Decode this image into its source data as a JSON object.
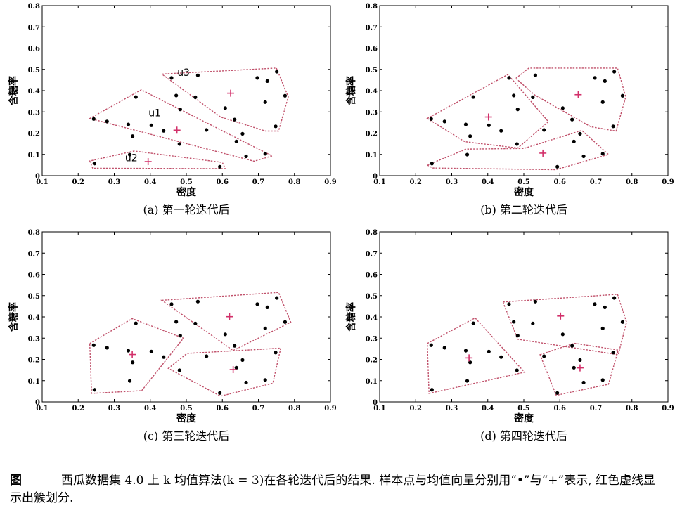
{
  "chart_data": [
    {
      "type": "scatter",
      "subcaption": "(a) 第一轮迭代后",
      "xlabel": "密度",
      "ylabel": "含糖率",
      "xlim": [
        0.1,
        0.9
      ],
      "ylim": [
        0,
        0.8
      ],
      "xticks": [
        "0.1",
        "0.2",
        "0.3",
        "0.4",
        "0.5",
        "0.6",
        "0.7",
        "0.8",
        "0.9"
      ],
      "yticks": [
        "0",
        "0.1",
        "0.2",
        "0.3",
        "0.4",
        "0.5",
        "0.6",
        "0.7",
        "0.8"
      ],
      "points": [
        [
          0.243,
          0.267
        ],
        [
          0.245,
          0.057
        ],
        [
          0.28,
          0.255
        ],
        [
          0.339,
          0.241
        ],
        [
          0.343,
          0.099
        ],
        [
          0.351,
          0.186
        ],
        [
          0.36,
          0.37
        ],
        [
          0.403,
          0.237
        ],
        [
          0.437,
          0.211
        ],
        [
          0.459,
          0.46
        ],
        [
          0.481,
          0.149
        ],
        [
          0.483,
          0.312
        ],
        [
          0.525,
          0.369
        ],
        [
          0.532,
          0.472
        ],
        [
          0.556,
          0.215
        ],
        [
          0.593,
          0.042
        ],
        [
          0.608,
          0.318
        ],
        [
          0.634,
          0.264
        ],
        [
          0.639,
          0.161
        ],
        [
          0.656,
          0.197
        ],
        [
          0.666,
          0.091
        ],
        [
          0.697,
          0.46
        ],
        [
          0.719,
          0.103
        ],
        [
          0.748,
          0.232
        ],
        [
          0.751,
          0.489
        ],
        [
          0.774,
          0.376
        ],
        [
          0.719,
          0.346
        ],
        [
          0.472,
          0.377
        ],
        [
          0.725,
          0.445
        ]
      ],
      "means": [
        [
          0.474,
          0.214
        ],
        [
          0.394,
          0.066
        ],
        [
          0.623,
          0.388
        ]
      ],
      "clusters": [
        {
          "label": "u1",
          "hull": [
            [
              0.232,
              0.269
            ],
            [
              0.375,
              0.404
            ],
            [
              0.738,
              0.093
            ],
            [
              0.688,
              0.068
            ]
          ]
        },
        {
          "label": "u2",
          "hull": [
            [
              0.232,
              0.069
            ],
            [
              0.24,
              0.035
            ],
            [
              0.608,
              0.033
            ],
            [
              0.6,
              0.062
            ],
            [
              0.355,
              0.116
            ]
          ]
        },
        {
          "label": "u3",
          "hull": [
            [
              0.432,
              0.478
            ],
            [
              0.75,
              0.506
            ],
            [
              0.783,
              0.371
            ],
            [
              0.756,
              0.21
            ],
            [
              0.72,
              0.21
            ],
            [
              0.595,
              0.276
            ]
          ]
        }
      ],
      "cluster_label_positions": [
        [
          0.395,
          0.28
        ],
        [
          0.33,
          0.068
        ],
        [
          0.475,
          0.47
        ]
      ]
    },
    {
      "type": "scatter",
      "subcaption": "(b) 第二轮迭代后",
      "xlabel": "密度",
      "ylabel": "含糖率",
      "xlim": [
        0.1,
        0.9
      ],
      "ylim": [
        0,
        0.8
      ],
      "xticks": [
        "0.1",
        "0.2",
        "0.3",
        "0.4",
        "0.5",
        "0.6",
        "0.7",
        "0.8",
        "0.9"
      ],
      "yticks": [
        "0",
        "0.1",
        "0.2",
        "0.3",
        "0.4",
        "0.5",
        "0.6",
        "0.7",
        "0.8"
      ],
      "points": [
        [
          0.243,
          0.267
        ],
        [
          0.245,
          0.057
        ],
        [
          0.28,
          0.255
        ],
        [
          0.339,
          0.241
        ],
        [
          0.343,
          0.099
        ],
        [
          0.351,
          0.186
        ],
        [
          0.36,
          0.37
        ],
        [
          0.403,
          0.237
        ],
        [
          0.437,
          0.211
        ],
        [
          0.459,
          0.46
        ],
        [
          0.481,
          0.149
        ],
        [
          0.483,
          0.312
        ],
        [
          0.525,
          0.369
        ],
        [
          0.532,
          0.472
        ],
        [
          0.556,
          0.215
        ],
        [
          0.593,
          0.042
        ],
        [
          0.608,
          0.318
        ],
        [
          0.634,
          0.264
        ],
        [
          0.639,
          0.161
        ],
        [
          0.656,
          0.197
        ],
        [
          0.666,
          0.091
        ],
        [
          0.697,
          0.46
        ],
        [
          0.719,
          0.103
        ],
        [
          0.748,
          0.232
        ],
        [
          0.751,
          0.489
        ],
        [
          0.774,
          0.376
        ],
        [
          0.719,
          0.346
        ],
        [
          0.472,
          0.377
        ],
        [
          0.725,
          0.445
        ]
      ],
      "means": [
        [
          0.402,
          0.276
        ],
        [
          0.553,
          0.106
        ],
        [
          0.651,
          0.381
        ]
      ],
      "clusters": [
        {
          "hull": [
            [
              0.232,
              0.269
            ],
            [
              0.456,
              0.476
            ],
            [
              0.568,
              0.254
            ],
            [
              0.483,
              0.13
            ],
            [
              0.336,
              0.16
            ]
          ]
        },
        {
          "hull": [
            [
              0.232,
              0.05
            ],
            [
              0.247,
              0.036
            ],
            [
              0.589,
              0.028
            ],
            [
              0.735,
              0.1
            ],
            [
              0.661,
              0.213
            ],
            [
              0.5,
              0.128
            ],
            [
              0.34,
              0.125
            ]
          ]
        },
        {
          "hull": [
            [
              0.478,
              0.458
            ],
            [
              0.514,
              0.506
            ],
            [
              0.76,
              0.506
            ],
            [
              0.783,
              0.371
            ],
            [
              0.756,
              0.21
            ],
            [
              0.686,
              0.23
            ],
            [
              0.53,
              0.38
            ]
          ]
        }
      ]
    },
    {
      "type": "scatter",
      "subcaption": "(c) 第三轮迭代后",
      "xlabel": "密度",
      "ylabel": "含糖率",
      "xlim": [
        0.1,
        0.9
      ],
      "ylim": [
        0,
        0.8
      ],
      "xticks": [
        "0.1",
        "0.2",
        "0.3",
        "0.4",
        "0.5",
        "0.6",
        "0.7",
        "0.8",
        "0.9"
      ],
      "yticks": [
        "0",
        "0.1",
        "0.2",
        "0.3",
        "0.4",
        "0.5",
        "0.6",
        "0.7",
        "0.8"
      ],
      "points": [
        [
          0.243,
          0.267
        ],
        [
          0.245,
          0.057
        ],
        [
          0.28,
          0.255
        ],
        [
          0.339,
          0.241
        ],
        [
          0.343,
          0.099
        ],
        [
          0.351,
          0.186
        ],
        [
          0.36,
          0.37
        ],
        [
          0.403,
          0.237
        ],
        [
          0.437,
          0.211
        ],
        [
          0.459,
          0.46
        ],
        [
          0.481,
          0.149
        ],
        [
          0.483,
          0.312
        ],
        [
          0.525,
          0.369
        ],
        [
          0.532,
          0.472
        ],
        [
          0.556,
          0.215
        ],
        [
          0.593,
          0.042
        ],
        [
          0.608,
          0.318
        ],
        [
          0.634,
          0.264
        ],
        [
          0.639,
          0.161
        ],
        [
          0.656,
          0.197
        ],
        [
          0.666,
          0.091
        ],
        [
          0.697,
          0.46
        ],
        [
          0.719,
          0.103
        ],
        [
          0.748,
          0.232
        ],
        [
          0.751,
          0.489
        ],
        [
          0.774,
          0.376
        ],
        [
          0.719,
          0.346
        ],
        [
          0.472,
          0.377
        ],
        [
          0.725,
          0.445
        ]
      ],
      "means": [
        [
          0.35,
          0.223
        ],
        [
          0.63,
          0.152
        ],
        [
          0.62,
          0.401
        ]
      ],
      "clusters": [
        {
          "hull": [
            [
              0.232,
              0.275
            ],
            [
              0.35,
              0.392
            ],
            [
              0.492,
              0.3
            ],
            [
              0.376,
              0.053
            ],
            [
              0.237,
              0.04
            ]
          ]
        },
        {
          "hull": [
            [
              0.45,
              0.158
            ],
            [
              0.502,
              0.228
            ],
            [
              0.762,
              0.253
            ],
            [
              0.74,
              0.088
            ],
            [
              0.595,
              0.027
            ]
          ]
        },
        {
          "hull": [
            [
              0.432,
              0.478
            ],
            [
              0.756,
              0.515
            ],
            [
              0.79,
              0.375
            ],
            [
              0.63,
              0.242
            ]
          ]
        }
      ]
    },
    {
      "type": "scatter",
      "subcaption": "(d) 第四轮迭代后",
      "xlabel": "密度",
      "ylabel": "含糖率",
      "xlim": [
        0.1,
        0.9
      ],
      "ylim": [
        0,
        0.8
      ],
      "xticks": [
        "0.1",
        "0.2",
        "0.3",
        "0.4",
        "0.5",
        "0.6",
        "0.7",
        "0.8",
        "0.9"
      ],
      "yticks": [
        "0",
        "0.1",
        "0.2",
        "0.3",
        "0.4",
        "0.5",
        "0.6",
        "0.7",
        "0.8"
      ],
      "points": [
        [
          0.243,
          0.267
        ],
        [
          0.245,
          0.057
        ],
        [
          0.28,
          0.255
        ],
        [
          0.339,
          0.241
        ],
        [
          0.343,
          0.099
        ],
        [
          0.351,
          0.186
        ],
        [
          0.36,
          0.37
        ],
        [
          0.403,
          0.237
        ],
        [
          0.437,
          0.211
        ],
        [
          0.459,
          0.46
        ],
        [
          0.481,
          0.149
        ],
        [
          0.483,
          0.312
        ],
        [
          0.525,
          0.369
        ],
        [
          0.532,
          0.472
        ],
        [
          0.556,
          0.215
        ],
        [
          0.593,
          0.042
        ],
        [
          0.608,
          0.318
        ],
        [
          0.634,
          0.264
        ],
        [
          0.639,
          0.161
        ],
        [
          0.656,
          0.197
        ],
        [
          0.666,
          0.091
        ],
        [
          0.697,
          0.46
        ],
        [
          0.719,
          0.103
        ],
        [
          0.748,
          0.232
        ],
        [
          0.751,
          0.489
        ],
        [
          0.774,
          0.376
        ],
        [
          0.719,
          0.346
        ],
        [
          0.472,
          0.377
        ],
        [
          0.725,
          0.445
        ]
      ],
      "means": [
        [
          0.348,
          0.207
        ],
        [
          0.656,
          0.16
        ],
        [
          0.602,
          0.404
        ]
      ],
      "clusters": [
        {
          "hull": [
            [
              0.232,
              0.275
            ],
            [
              0.365,
              0.395
            ],
            [
              0.502,
              0.14
            ],
            [
              0.237,
              0.04
            ]
          ]
        },
        {
          "hull": [
            [
              0.545,
              0.222
            ],
            [
              0.64,
              0.276
            ],
            [
              0.762,
              0.244
            ],
            [
              0.735,
              0.083
            ],
            [
              0.59,
              0.031
            ]
          ]
        },
        {
          "hull": [
            [
              0.442,
              0.47
            ],
            [
              0.76,
              0.506
            ],
            [
              0.785,
              0.375
            ],
            [
              0.762,
              0.222
            ],
            [
              0.483,
              0.295
            ]
          ]
        }
      ]
    }
  ],
  "caption": {
    "label": "图",
    "text": "西瓜数据集 4.0 上 k 均值算法(k = 3)在各轮迭代后的结果. 样本点与均值向量分别用“•”与“+”表示, 红色虚线显示出簇划分."
  },
  "colors": {
    "hull": "#c0506a",
    "mean": "#d2306a",
    "point": "#000000"
  }
}
